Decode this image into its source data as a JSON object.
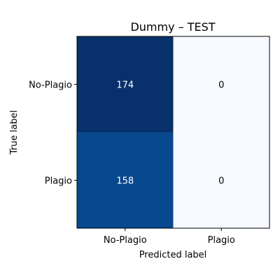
{
  "chart_data": {
    "type": "heatmap",
    "title": "Dummy – TEST",
    "xlabel": "Predicted label",
    "ylabel": "True label",
    "x_categories": [
      "No-Plagio",
      "Plagio"
    ],
    "y_categories": [
      "No-Plagio",
      "Plagio"
    ],
    "values": [
      [
        174,
        0
      ],
      [
        158,
        0
      ]
    ],
    "colormap": "Blues",
    "colors": {
      "low": "#f7fbff",
      "high": "#08306b",
      "text_dark": "#000000",
      "text_light": "#ffffff"
    }
  }
}
